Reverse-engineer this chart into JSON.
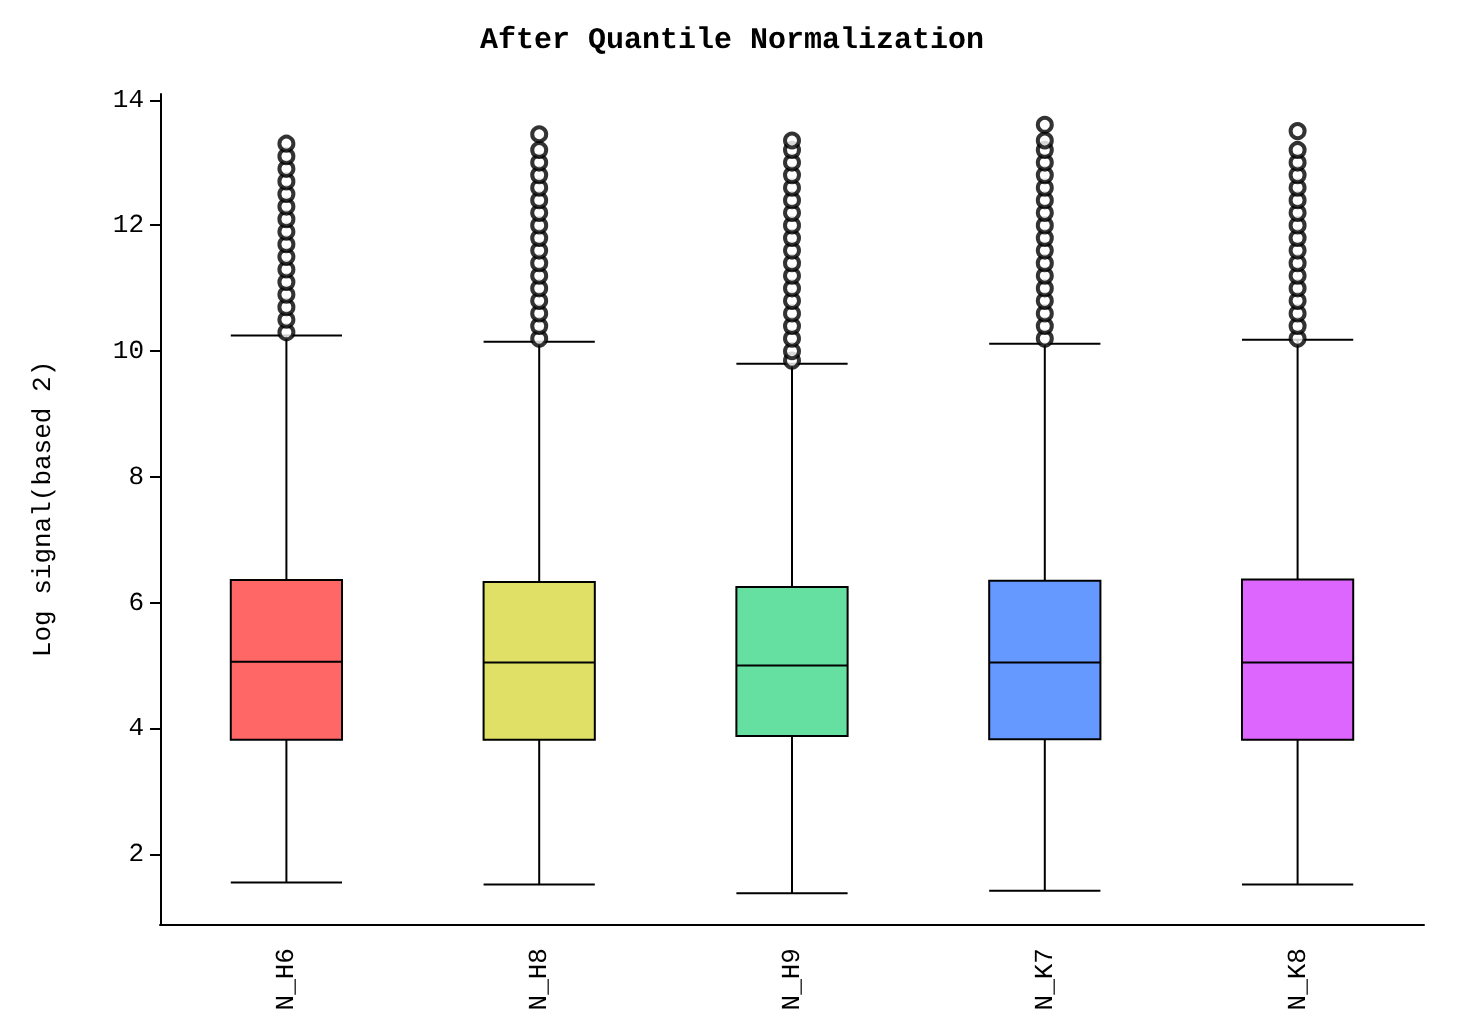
{
  "chart_data": {
    "type": "box",
    "title": "After Quantile Normalization",
    "ylabel": "Log signal(based 2)",
    "categories": [
      "N_H6",
      "N_H8",
      "N_H9",
      "N_K7",
      "N_K8"
    ],
    "colors": [
      "#ff6666",
      "#e0e066",
      "#66e0a0",
      "#6699ff",
      "#dd66ff"
    ],
    "boxes": [
      {
        "low": 1.55,
        "q1": 3.82,
        "median": 5.06,
        "q3": 6.36,
        "high": 10.25,
        "outliers": [
          10.3,
          10.5,
          10.7,
          10.9,
          11.1,
          11.3,
          11.5,
          11.7,
          11.9,
          12.1,
          12.3,
          12.5,
          12.7,
          12.9,
          13.1,
          13.3
        ]
      },
      {
        "low": 1.52,
        "q1": 3.82,
        "median": 5.05,
        "q3": 6.33,
        "high": 10.15,
        "outliers": [
          10.2,
          10.4,
          10.6,
          10.8,
          11.0,
          11.2,
          11.4,
          11.6,
          11.8,
          12.0,
          12.2,
          12.4,
          12.6,
          12.8,
          13.0,
          13.2,
          13.45
        ]
      },
      {
        "low": 1.38,
        "q1": 3.88,
        "median": 5.0,
        "q3": 6.25,
        "high": 9.8,
        "outliers": [
          9.85,
          10.0,
          10.2,
          10.4,
          10.6,
          10.8,
          11.0,
          11.2,
          11.4,
          11.6,
          11.8,
          12.0,
          12.2,
          12.4,
          12.6,
          12.8,
          13.0,
          13.2,
          13.35
        ]
      },
      {
        "low": 1.42,
        "q1": 3.83,
        "median": 5.05,
        "q3": 6.35,
        "high": 10.12,
        "outliers": [
          10.2,
          10.4,
          10.6,
          10.8,
          11.0,
          11.2,
          11.4,
          11.6,
          11.8,
          12.0,
          12.2,
          12.4,
          12.6,
          12.8,
          13.0,
          13.2,
          13.35,
          13.6
        ]
      },
      {
        "low": 1.52,
        "q1": 3.82,
        "median": 5.05,
        "q3": 6.37,
        "high": 10.18,
        "outliers": [
          10.2,
          10.4,
          10.6,
          10.8,
          11.0,
          11.2,
          11.4,
          11.6,
          11.8,
          12.0,
          12.2,
          12.4,
          12.6,
          12.8,
          13.0,
          13.2,
          13.5
        ]
      }
    ],
    "ylim": [
      0.89,
      14.09
    ],
    "yticks": [
      2,
      4,
      6,
      8,
      10,
      12,
      14
    ],
    "grid": false
  }
}
